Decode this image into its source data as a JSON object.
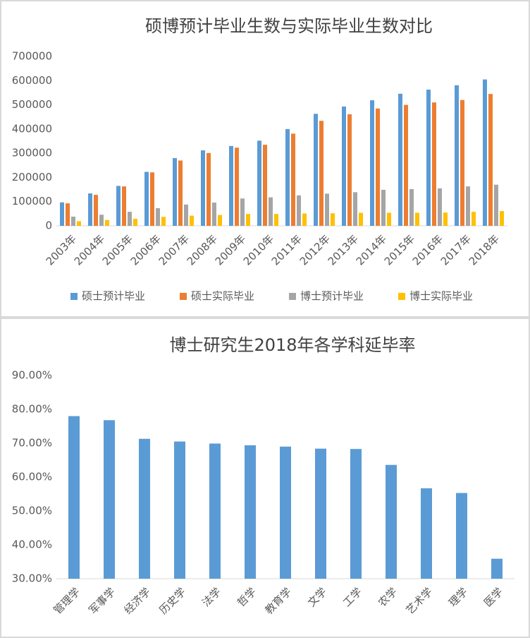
{
  "chart_data": [
    {
      "type": "bar",
      "title": "硕博预计毕业生数与实际毕业生数对比",
      "categories": [
        "2003年",
        "2004年",
        "2005年",
        "2006年",
        "2007年",
        "2008年",
        "2009年",
        "2010年",
        "2011年",
        "2012年",
        "2013年",
        "2014年",
        "2015年",
        "2016年",
        "2017年",
        "2018年"
      ],
      "series": [
        {
          "name": "硕士预计毕业",
          "color": "#5b9bd5",
          "values": [
            97000,
            134000,
            165000,
            223000,
            280000,
            312000,
            330000,
            352000,
            400000,
            463000,
            493000,
            519000,
            546000,
            563000,
            581000,
            605000
          ]
        },
        {
          "name": "硕士实际毕业",
          "color": "#ed7d31",
          "values": [
            93000,
            128000,
            163000,
            221000,
            270000,
            301000,
            323000,
            335000,
            381000,
            434000,
            461000,
            485000,
            500000,
            510000,
            520000,
            545000
          ]
        },
        {
          "name": "博士预计毕业",
          "color": "#a5a5a5",
          "values": [
            38000,
            46000,
            58000,
            73000,
            88000,
            96000,
            113000,
            118000,
            126000,
            133000,
            139000,
            149000,
            152000,
            155000,
            163000,
            170000
          ]
        },
        {
          "name": "博士实际毕业",
          "color": "#ffc000",
          "values": [
            19000,
            24000,
            29000,
            37000,
            42000,
            45000,
            49000,
            49000,
            51000,
            52000,
            54000,
            54000,
            54000,
            55000,
            58000,
            61000
          ]
        }
      ],
      "ylim": [
        0,
        700000
      ],
      "yticks": [
        0,
        100000,
        200000,
        300000,
        400000,
        500000,
        600000,
        700000
      ],
      "grid": false,
      "legend": "bottom"
    },
    {
      "type": "bar",
      "title": "博士研究生2018年各学科延毕率",
      "categories": [
        "管理学",
        "军事学",
        "经济学",
        "历史学",
        "法学",
        "哲学",
        "教育学",
        "文学",
        "工学",
        "农学",
        "艺术学",
        "理学",
        "医学"
      ],
      "values": [
        78.0,
        76.8,
        71.3,
        70.5,
        69.9,
        69.4,
        69.0,
        68.4,
        68.3,
        63.6,
        56.7,
        55.3,
        35.9
      ],
      "color": "#5b9bd5",
      "ylim": [
        30,
        90
      ],
      "yticks": [
        {
          "value": 30,
          "label": "30.00%"
        },
        {
          "value": 40,
          "label": "40.00%"
        },
        {
          "value": 50,
          "label": "50.00%"
        },
        {
          "value": 60,
          "label": "60.00%"
        },
        {
          "value": 70,
          "label": "70.00%"
        },
        {
          "value": 80,
          "label": "80.00%"
        },
        {
          "value": 90,
          "label": "90.00%"
        }
      ],
      "grid": false
    }
  ]
}
